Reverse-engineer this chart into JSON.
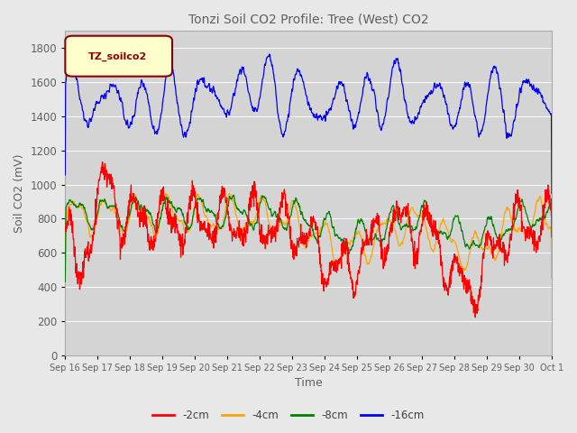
{
  "title": "Tonzi Soil CO2 Profile: Tree (West) CO2",
  "ylabel": "Soil CO2 (mV)",
  "xlabel": "Time",
  "legend_label": "TZ_soilco2",
  "series_labels": [
    "-2cm",
    "-4cm",
    "-8cm",
    "-16cm"
  ],
  "series_colors": [
    "red",
    "orange",
    "green",
    "blue"
  ],
  "ylim": [
    0,
    1900
  ],
  "yticks": [
    0,
    200,
    400,
    600,
    800,
    1000,
    1200,
    1400,
    1600,
    1800
  ],
  "xtick_labels": [
    "Sep 16",
    "Sep 17",
    "Sep 18",
    "Sep 19",
    "Sep 20",
    "Sep 21",
    "Sep 22",
    "Sep 23",
    "Sep 24",
    "Sep 25",
    "Sep 26",
    "Sep 27",
    "Sep 28",
    "Sep 29",
    "Sep 30",
    "Oct 1"
  ],
  "background_color": "#e8e8e8",
  "plot_background": "#d4d4d4",
  "title_color": "#606060",
  "axis_label_color": "#606060",
  "figsize": [
    6.4,
    4.8
  ],
  "dpi": 100
}
